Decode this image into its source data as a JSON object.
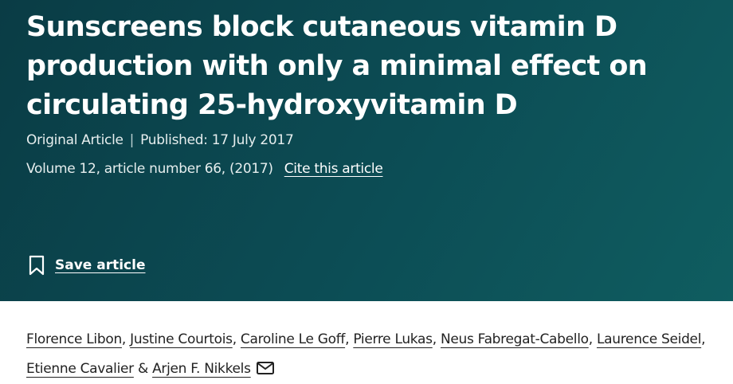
{
  "header": {
    "title": "Sunscreens block cutaneous vitamin D production with only a minimal effect on circulating 25-hydroxyvitamin D",
    "article_type": "Original Article",
    "meta_divider": "|",
    "published": "Published: 17 July 2017",
    "volume": "Volume 12, article number 66, (2017)",
    "cite_link": "Cite this article",
    "save_link": "Save article"
  },
  "authors": {
    "names": [
      "Florence Libon",
      "Justine Courtois",
      "Caroline Le Goff",
      "Pierre Lukas",
      "Neus Fabregat-Cabello",
      "Laurence Seidel",
      "Etienne Cavalier",
      "Arjen F. Nikkels"
    ],
    "separator": ",",
    "conjunction": "&"
  }
}
